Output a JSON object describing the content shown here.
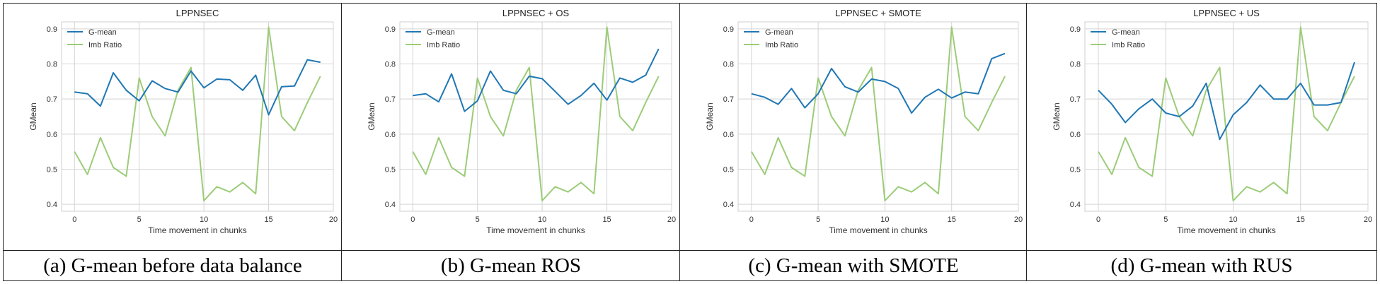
{
  "colors": {
    "gmean": "#1f77b4",
    "imb": "#9ccc78",
    "grid": "#d4d4d4",
    "frame": "#222222"
  },
  "chart_data": [
    {
      "type": "line",
      "title": "LPPNSEC",
      "caption": "(a) G-mean before data balance",
      "xlabel": "Time movement in chunks",
      "ylabel": "GMean",
      "xlim": [
        -1,
        20
      ],
      "ylim": [
        0.38,
        0.92
      ],
      "xticks": [
        "0",
        "5",
        "10",
        "15",
        "20"
      ],
      "yticks": [
        "0.4",
        "0.5",
        "0.6",
        "0.7",
        "0.8",
        "0.9"
      ],
      "legend": "top-left",
      "x": [
        0,
        1,
        2,
        3,
        4,
        5,
        6,
        7,
        8,
        9,
        10,
        11,
        12,
        13,
        14,
        15,
        16,
        17,
        18,
        19
      ],
      "series": [
        {
          "name": "G-mean",
          "values": [
            0.72,
            0.715,
            0.68,
            0.775,
            0.725,
            0.695,
            0.752,
            0.73,
            0.72,
            0.78,
            0.732,
            0.757,
            0.755,
            0.725,
            0.768,
            0.655,
            0.735,
            0.737,
            0.812,
            0.805
          ]
        },
        {
          "name": "Imb Ratio",
          "values": [
            0.55,
            0.485,
            0.59,
            0.505,
            0.48,
            0.76,
            0.65,
            0.595,
            0.725,
            0.79,
            0.41,
            0.45,
            0.435,
            0.462,
            0.43,
            0.905,
            0.65,
            0.61,
            0.69,
            0.765
          ]
        }
      ]
    },
    {
      "type": "line",
      "title": "LPPNSEC + OS",
      "caption": "(b) G-mean ROS",
      "xlabel": "Time movement in chunks",
      "ylabel": "GMean",
      "xlim": [
        -1,
        20
      ],
      "ylim": [
        0.38,
        0.92
      ],
      "xticks": [
        "0",
        "5",
        "10",
        "15",
        "20"
      ],
      "yticks": [
        "0.4",
        "0.5",
        "0.6",
        "0.7",
        "0.8",
        "0.9"
      ],
      "legend": "top-left",
      "x": [
        0,
        1,
        2,
        3,
        4,
        5,
        6,
        7,
        8,
        9,
        10,
        11,
        12,
        13,
        14,
        15,
        16,
        17,
        18,
        19
      ],
      "series": [
        {
          "name": "G-mean",
          "values": [
            0.71,
            0.715,
            0.692,
            0.772,
            0.665,
            0.695,
            0.78,
            0.725,
            0.715,
            0.765,
            0.758,
            0.722,
            0.685,
            0.71,
            0.745,
            0.697,
            0.76,
            0.748,
            0.768,
            0.843
          ]
        },
        {
          "name": "Imb Ratio",
          "values": [
            0.55,
            0.485,
            0.59,
            0.505,
            0.48,
            0.76,
            0.65,
            0.595,
            0.725,
            0.79,
            0.41,
            0.45,
            0.435,
            0.462,
            0.43,
            0.905,
            0.65,
            0.61,
            0.69,
            0.765
          ]
        }
      ]
    },
    {
      "type": "line",
      "title": "LPPNSEC + SMOTE",
      "caption": "(c) G-mean with SMOTE",
      "xlabel": "Time movement in chunks",
      "ylabel": "GMean",
      "xlim": [
        -1,
        20
      ],
      "ylim": [
        0.38,
        0.92
      ],
      "xticks": [
        "0",
        "5",
        "10",
        "15",
        "20"
      ],
      "yticks": [
        "0.4",
        "0.5",
        "0.6",
        "0.7",
        "0.8",
        "0.9"
      ],
      "legend": "top-left",
      "x": [
        0,
        1,
        2,
        3,
        4,
        5,
        6,
        7,
        8,
        9,
        10,
        11,
        12,
        13,
        14,
        15,
        16,
        17,
        18,
        19
      ],
      "series": [
        {
          "name": "G-mean",
          "values": [
            0.715,
            0.705,
            0.685,
            0.73,
            0.675,
            0.715,
            0.787,
            0.735,
            0.72,
            0.757,
            0.75,
            0.73,
            0.66,
            0.705,
            0.728,
            0.703,
            0.72,
            0.715,
            0.815,
            0.83
          ]
        },
        {
          "name": "Imb Ratio",
          "values": [
            0.55,
            0.485,
            0.59,
            0.505,
            0.48,
            0.76,
            0.65,
            0.595,
            0.725,
            0.79,
            0.41,
            0.45,
            0.435,
            0.462,
            0.43,
            0.905,
            0.65,
            0.61,
            0.69,
            0.765
          ]
        }
      ]
    },
    {
      "type": "line",
      "title": "LPPNSEC + US",
      "caption": "(d) G-mean with RUS",
      "xlabel": "Time movement in chunks",
      "ylabel": "GMean",
      "xlim": [
        -1,
        20
      ],
      "ylim": [
        0.38,
        0.92
      ],
      "xticks": [
        "0",
        "5",
        "10",
        "15",
        "20"
      ],
      "yticks": [
        "0.4",
        "0.5",
        "0.6",
        "0.7",
        "0.8",
        "0.9"
      ],
      "legend": "top-left",
      "x": [
        0,
        1,
        2,
        3,
        4,
        5,
        6,
        7,
        8,
        9,
        10,
        11,
        12,
        13,
        14,
        15,
        16,
        17,
        18,
        19
      ],
      "series": [
        {
          "name": "G-mean",
          "values": [
            0.725,
            0.685,
            0.633,
            0.672,
            0.7,
            0.66,
            0.65,
            0.68,
            0.745,
            0.585,
            0.655,
            0.69,
            0.74,
            0.7,
            0.7,
            0.745,
            0.683,
            0.683,
            0.69,
            0.805
          ]
        },
        {
          "name": "Imb Ratio",
          "values": [
            0.55,
            0.485,
            0.59,
            0.505,
            0.48,
            0.76,
            0.65,
            0.595,
            0.725,
            0.79,
            0.41,
            0.45,
            0.435,
            0.462,
            0.43,
            0.905,
            0.65,
            0.61,
            0.69,
            0.765
          ]
        }
      ]
    }
  ]
}
